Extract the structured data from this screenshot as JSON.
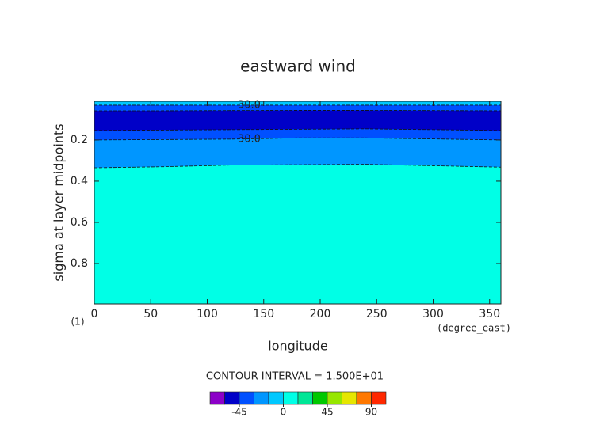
{
  "chart_data": {
    "type": "contour",
    "title": "eastward wind",
    "xlabel": "longitude",
    "ylabel": "sigma at layer midpoints",
    "xunit": "(degree_east)",
    "corner_label": "(1)",
    "note": "CONTOUR INTERVAL = 1.500E+01",
    "x": [
      0,
      60,
      120,
      180,
      240,
      300,
      360
    ],
    "xlim": [
      0,
      360
    ],
    "xticks": [
      0,
      50,
      100,
      150,
      200,
      250,
      300,
      350
    ],
    "ylim": [
      0.012,
      0.996
    ],
    "yticks": [
      0.2,
      0.4,
      0.6,
      0.8
    ],
    "y_inverted": true,
    "background_color": "#00ffe6",
    "layers": [
      {
        "color": "#00c8ff",
        "values": [
          0.031,
          0.031,
          0.031,
          0.031,
          0.031,
          0.031,
          0.031
        ],
        "label": "30.0"
      },
      {
        "color": "#0050ff",
        "values": [
          0.058,
          0.058,
          0.057,
          0.056,
          0.056,
          0.057,
          0.058
        ]
      },
      {
        "color": "#0000c8",
        "values": [
          0.154,
          0.152,
          0.15,
          0.148,
          0.146,
          0.15,
          0.154
        ]
      },
      {
        "color": "#0050ff",
        "values": [
          0.2,
          0.198,
          0.196,
          0.19,
          0.19,
          0.195,
          0.2
        ],
        "label": "30.0"
      },
      {
        "color": "#0096ff",
        "values": [
          0.335,
          0.33,
          0.322,
          0.32,
          0.318,
          0.325,
          0.332
        ]
      }
    ],
    "colorbar": {
      "levels": [
        -75,
        -60,
        -45,
        -30,
        -15,
        0,
        15,
        30,
        45,
        60,
        75,
        90,
        105
      ],
      "colors": [
        "#8c00c8",
        "#0000c8",
        "#0050ff",
        "#0096ff",
        "#00c8ff",
        "#00ffe6",
        "#00e696",
        "#00c800",
        "#96e600",
        "#e6e600",
        "#ff7800",
        "#ff2800"
      ],
      "ticks": [
        -45,
        0,
        45,
        90
      ]
    }
  }
}
